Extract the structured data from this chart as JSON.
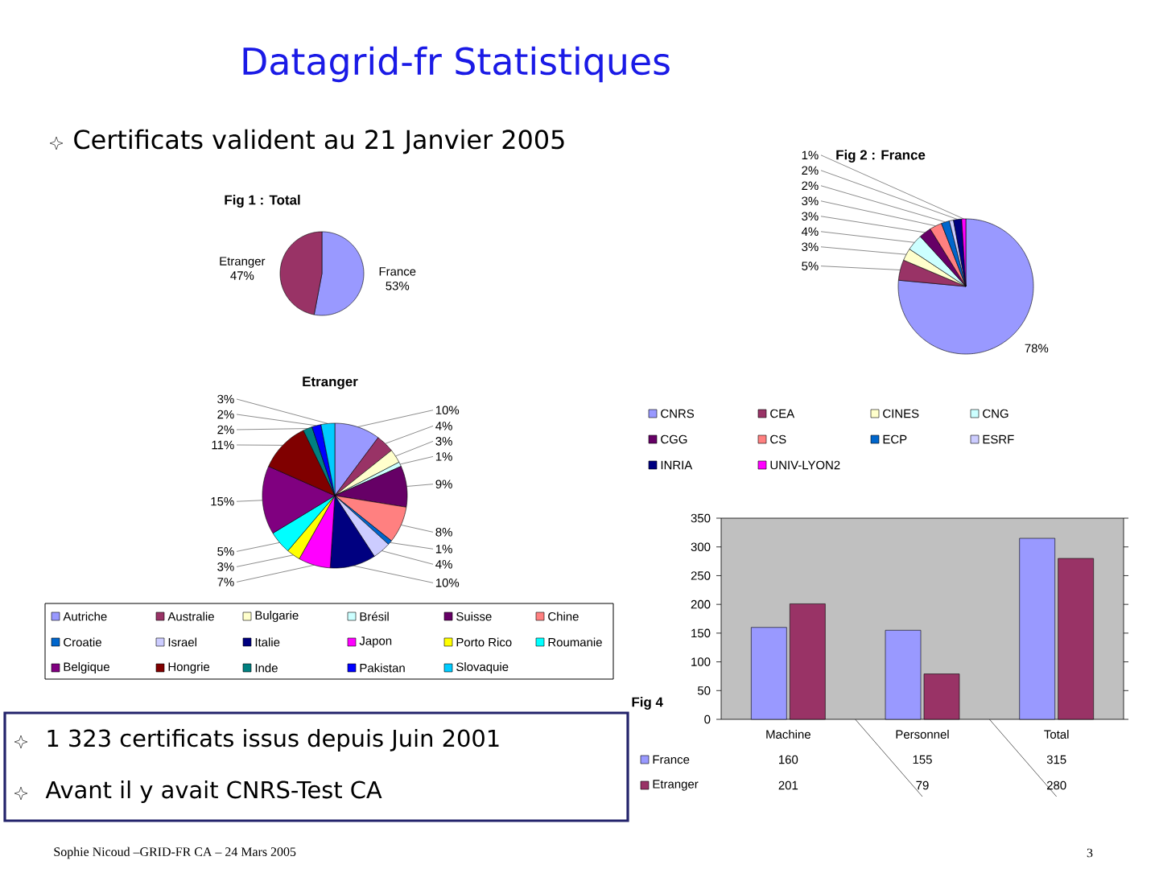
{
  "chart_data": [
    {
      "type": "other",
      "title": "Datagrid-fr Statistiques",
      "annotations": [
        "Certificats valident au 21 Janvier 2005",
        "1 323 certificats issus depuis Juin 2001",
        "Avant il y avait CNRS-Test CA",
        "Sophie Nicoud –GRID-FR CA – 24 Mars 2005",
        "3"
      ]
    },
    {
      "type": "pie",
      "title": "Fig 1 : Total",
      "categories": [
        "France",
        "Etranger"
      ],
      "values": [
        53,
        47
      ],
      "value_labels": [
        "53%",
        "47%"
      ],
      "colors": [
        "#9999ff",
        "#993366"
      ]
    },
    {
      "type": "pie",
      "title": "Fig 2 : France",
      "categories": [
        "CNRS",
        "CEA",
        "CINES",
        "CNG",
        "CGG",
        "CS",
        "ECP",
        "ESRF",
        "INRIA",
        "UNIV-LYON2"
      ],
      "values": [
        78,
        5,
        3,
        4,
        3,
        3,
        2,
        1,
        2,
        1
      ],
      "value_labels": [
        "78%",
        "5%",
        "3%",
        "4%",
        "3%",
        "3%",
        "2%",
        null,
        "2%",
        "1%"
      ],
      "colors": [
        "#9999ff",
        "#993366",
        "#ffffcc",
        "#ccffff",
        "#660066",
        "#ff8080",
        "#0066cc",
        "#ccccff",
        "#000080",
        "#ff00ff"
      ],
      "legend": "bottom"
    },
    {
      "type": "pie",
      "title": "Etranger",
      "categories": [
        "Autriche",
        "Australie",
        "Bulgarie",
        "Brésil",
        "Suisse",
        "Chine",
        "Croatie",
        "Israel",
        "Italie",
        "Japon",
        "Porto Rico",
        "Roumanie",
        "Belgique",
        "Hongrie",
        "Inde",
        "Pakistan",
        "Slovaquie"
      ],
      "values": [
        10,
        4,
        3,
        1,
        9,
        8,
        1,
        4,
        10,
        7,
        3,
        5,
        15,
        11,
        2,
        2,
        3
      ],
      "value_labels": [
        "10%",
        "4%",
        "3%",
        "1%",
        "9%",
        "8%",
        "1%",
        "4%",
        "10%",
        "7%",
        "3%",
        "5%",
        "15%",
        "11%",
        "2%",
        "2%",
        "3%"
      ],
      "colors": [
        "#9999ff",
        "#993366",
        "#ffffcc",
        "#ccffff",
        "#660066",
        "#ff8080",
        "#0066cc",
        "#ccccff",
        "#000080",
        "#ff00ff",
        "#ffff00",
        "#00ffff",
        "#800080",
        "#800000",
        "#008080",
        "#0000ff",
        "#00ccff"
      ],
      "legend": "bottom"
    },
    {
      "type": "bar",
      "title": "Fig 4",
      "categories": [
        "Machine",
        "Personnel",
        "Total"
      ],
      "series": [
        {
          "name": "France",
          "color": "#9999ff",
          "values": [
            160,
            155,
            315
          ]
        },
        {
          "name": "Etranger",
          "color": "#993366",
          "values": [
            201,
            79,
            280
          ]
        }
      ],
      "ylim": [
        0,
        350
      ],
      "yticks": [
        0,
        50,
        100,
        150,
        200,
        250,
        300,
        350
      ],
      "data_labels": true,
      "legend": "bottom"
    }
  ]
}
